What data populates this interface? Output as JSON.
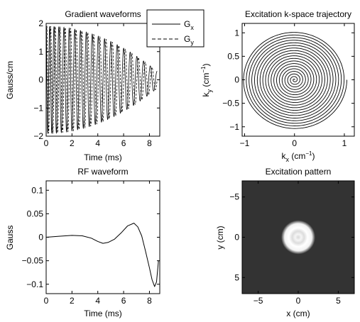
{
  "chart_data": [
    {
      "type": "line",
      "title": "Gradient waveforms",
      "xlabel": "Time (ms)",
      "ylabel": "Gauss/cm",
      "xlim": [
        0,
        8.8
      ],
      "ylim": [
        -2,
        2
      ],
      "xticks": [
        "0",
        "2",
        "4",
        "6",
        "8"
      ],
      "yticks": [
        "2",
        "1",
        "0",
        "−1",
        "−2"
      ],
      "legend_position": "top-right",
      "waveform": {
        "duration_ms": 8.6,
        "cycles": 19,
        "start_amplitude": 1.9,
        "end_amplitude": 0.3
      },
      "series": [
        {
          "name": "x",
          "legend_main": "G",
          "legend_sub": "x",
          "line_style": "solid",
          "phase": "cos"
        },
        {
          "name": "y",
          "legend_main": "G",
          "legend_sub": "y",
          "line_style": "dashed",
          "phase": "sin"
        }
      ]
    },
    {
      "type": "line",
      "title": "Excitation k-space trajectory",
      "xlabel_main": "k",
      "xlabel_sub": "x",
      "xlabel_unit": " (cm",
      "xlabel_exp": "−1",
      "xlabel_end": ")",
      "ylabel_main": "k",
      "ylabel_sub": "y",
      "ylabel_unit": " (cm",
      "ylabel_exp": "−1",
      "ylabel_end": ")",
      "xlim": [
        -1.05,
        1.2
      ],
      "ylim": [
        -1.2,
        1.2
      ],
      "xticks": [
        "−1",
        "0",
        "1"
      ],
      "yticks": [
        "1",
        "0.5",
        "0",
        "−0.5",
        "−1"
      ],
      "spiral": {
        "turns": 19,
        "max_radius": 1.05
      }
    },
    {
      "type": "line",
      "title": "RF waveform",
      "xlabel": "Time (ms)",
      "ylabel": "Gauss",
      "xlim": [
        0,
        8.8
      ],
      "ylim": [
        -0.12,
        0.12
      ],
      "xticks": [
        "0",
        "2",
        "4",
        "6",
        "8"
      ],
      "yticks": [
        "0.1",
        "0.05",
        "0",
        "−0.05",
        "−0.1"
      ],
      "x": [
        0,
        1,
        2,
        2.8,
        3.5,
        4.0,
        4.4,
        4.8,
        5.3,
        5.8,
        6.3,
        6.8,
        7.1,
        7.4,
        7.7,
        8.0,
        8.2,
        8.4,
        8.55,
        8.7
      ],
      "y": [
        0,
        0.002,
        0.004,
        0.003,
        -0.002,
        -0.009,
        -0.013,
        -0.011,
        -0.004,
        0.009,
        0.024,
        0.03,
        0.022,
        0.003,
        -0.03,
        -0.065,
        -0.09,
        -0.105,
        -0.095,
        -0.05
      ]
    },
    {
      "type": "heatmap",
      "title": "Excitation pattern",
      "xlabel": "x (cm)",
      "ylabel": "y (cm)",
      "xlim": [
        -7,
        7
      ],
      "ylim": [
        -7,
        7
      ],
      "xticks": [
        "−5",
        "0",
        "5"
      ],
      "yticks": [
        "−5",
        "0",
        "5"
      ],
      "disc": {
        "center": [
          0,
          0
        ],
        "radius_cm": 1.7
      },
      "colors": {
        "background": "#333333",
        "disc": "#ffffff"
      }
    }
  ]
}
